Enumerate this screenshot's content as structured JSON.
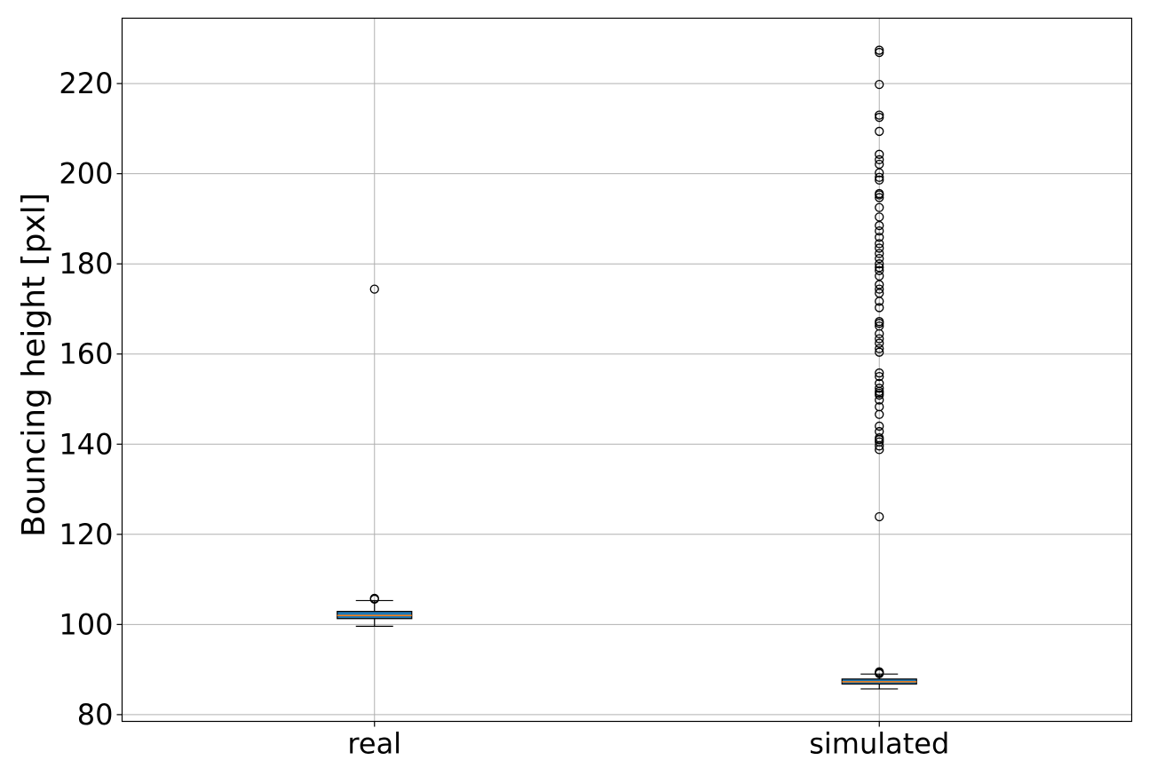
{
  "chart_data": {
    "type": "box",
    "ylabel": "Bouncing height [pxl]",
    "ylim": [
      78.5,
      234.5
    ],
    "yticks": [
      80,
      100,
      120,
      140,
      160,
      180,
      200,
      220
    ],
    "grid": true,
    "categories": [
      "real",
      "simulated"
    ],
    "boxes": [
      {
        "name": "real",
        "whisker_low": 99.6,
        "q1": 101.3,
        "median": 102.0,
        "q3": 102.9,
        "whisker_high": 105.3,
        "fliers": [
          105.6,
          105.8,
          174.4
        ]
      },
      {
        "name": "simulated",
        "whisker_low": 85.7,
        "q1": 86.8,
        "median": 87.3,
        "q3": 87.9,
        "whisker_high": 89.0,
        "fliers": [
          89.1,
          89.3,
          89.5,
          123.9,
          138.8,
          139.6,
          140.5,
          141.0,
          141.4,
          142.8,
          144.0,
          146.6,
          148.3,
          149.8,
          150.9,
          151.3,
          151.7,
          152.4,
          153.5,
          155.0,
          155.8,
          160.4,
          161.2,
          162.4,
          163.4,
          164.5,
          166.2,
          166.8,
          167.2,
          170.3,
          171.7,
          173.5,
          174.4,
          175.4,
          177.3,
          178.5,
          179.2,
          180.0,
          181.2,
          182.3,
          183.5,
          184.5,
          185.9,
          187.3,
          188.5,
          190.4,
          192.5,
          194.7,
          195.3,
          195.6,
          198.6,
          199.2,
          200.2,
          202.1,
          203.1,
          204.3,
          209.4,
          212.5,
          213.0,
          219.8,
          226.9,
          227.4
        ]
      }
    ]
  }
}
